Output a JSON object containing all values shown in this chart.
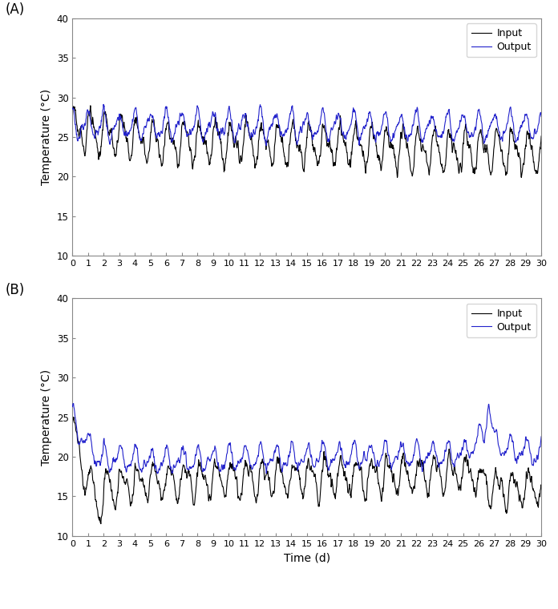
{
  "title_A": "(A)",
  "title_B": "(B)",
  "ylabel": "Temperature (°C)",
  "xlabel": "Time (d)",
  "ylim": [
    10,
    40
  ],
  "yticks": [
    10,
    15,
    20,
    25,
    30,
    35,
    40
  ],
  "xticks": [
    0,
    1,
    2,
    3,
    4,
    5,
    6,
    7,
    8,
    9,
    10,
    11,
    12,
    13,
    14,
    15,
    16,
    17,
    18,
    19,
    20,
    21,
    22,
    23,
    24,
    25,
    26,
    27,
    28,
    29,
    30
  ],
  "input_color": "#000000",
  "output_color": "#2222cc",
  "linewidth": 0.8,
  "legend_input": "Input",
  "legend_output": "Output",
  "n_days": 30,
  "samples_per_day": 48,
  "figsize": [
    6.96,
    7.6
  ],
  "dpi": 100
}
